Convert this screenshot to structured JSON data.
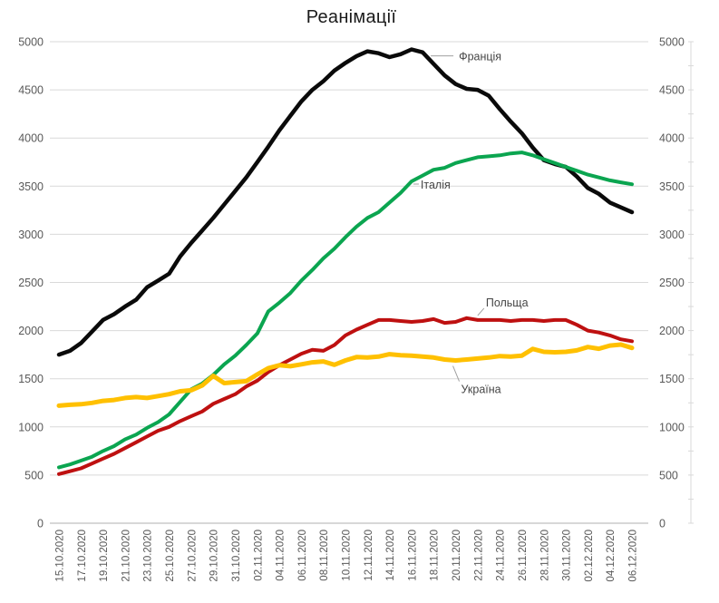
{
  "chart_data": {
    "type": "line",
    "title": "Реанімації",
    "xlabel": "",
    "ylabel": "",
    "ylim": [
      0,
      5000
    ],
    "y_ticks": [
      0,
      500,
      1000,
      1500,
      2000,
      2500,
      3000,
      3500,
      4000,
      4500,
      5000
    ],
    "x_tick_every": 2,
    "grid": true,
    "legend_position": "inline-annotations",
    "axis_text_color": "#595959",
    "grid_color": "#D9D9D9",
    "baseline_color": "#BFBFBF",
    "leader_line_color": "#A0A0A0",
    "annotation_text_color": "#454545",
    "categories": [
      "15.10.2020",
      "16.10.2020",
      "17.10.2020",
      "18.10.2020",
      "19.10.2020",
      "20.10.2020",
      "21.10.2020",
      "22.10.2020",
      "23.10.2020",
      "24.10.2020",
      "25.10.2020",
      "26.10.2020",
      "27.10.2020",
      "28.10.2020",
      "29.10.2020",
      "30.10.2020",
      "31.10.2020",
      "01.11.2020",
      "02.11.2020",
      "03.11.2020",
      "04.11.2020",
      "05.11.2020",
      "06.11.2020",
      "07.11.2020",
      "08.11.2020",
      "09.11.2020",
      "10.11.2020",
      "11.11.2020",
      "12.11.2020",
      "13.11.2020",
      "14.11.2020",
      "15.11.2020",
      "16.11.2020",
      "17.11.2020",
      "18.11.2020",
      "19.11.2020",
      "20.11.2020",
      "21.11.2020",
      "22.11.2020",
      "23.11.2020",
      "24.11.2020",
      "25.11.2020",
      "26.11.2020",
      "27.11.2020",
      "28.11.2020",
      "29.11.2020",
      "30.11.2020",
      "01.12.2020",
      "02.12.2020",
      "03.12.2020",
      "04.12.2020",
      "05.12.2020",
      "06.12.2020"
    ],
    "series": [
      {
        "name": "Франція",
        "id": "france",
        "color": "#0A0A0A",
        "stroke_width": 4.5,
        "values": [
          1750,
          1790,
          1870,
          1990,
          2110,
          2170,
          2250,
          2320,
          2450,
          2520,
          2590,
          2770,
          2910,
          3040,
          3170,
          3310,
          3450,
          3590,
          3750,
          3910,
          4080,
          4230,
          4380,
          4500,
          4590,
          4700,
          4780,
          4850,
          4900,
          4880,
          4840,
          4870,
          4920,
          4890,
          4770,
          4650,
          4560,
          4510,
          4500,
          4440,
          4300,
          4170,
          4050,
          3900,
          3770,
          3730,
          3700,
          3600,
          3480,
          3420,
          3330,
          3280,
          3230
        ]
      },
      {
        "name": "Італія",
        "id": "italy",
        "color": "#0BA550",
        "stroke_width": 4,
        "values": [
          580,
          610,
          650,
          690,
          750,
          800,
          870,
          920,
          990,
          1050,
          1130,
          1260,
          1390,
          1450,
          1540,
          1650,
          1740,
          1850,
          1970,
          2200,
          2290,
          2390,
          2520,
          2630,
          2750,
          2850,
          2970,
          3080,
          3170,
          3230,
          3330,
          3430,
          3550,
          3610,
          3670,
          3690,
          3740,
          3770,
          3800,
          3810,
          3820,
          3840,
          3850,
          3820,
          3780,
          3740,
          3700,
          3660,
          3620,
          3590,
          3560,
          3540,
          3520
        ]
      },
      {
        "name": "Польща",
        "id": "poland",
        "color": "#BE1010",
        "stroke_width": 4,
        "values": [
          510,
          540,
          570,
          620,
          670,
          720,
          780,
          840,
          900,
          960,
          1000,
          1060,
          1110,
          1160,
          1240,
          1290,
          1340,
          1420,
          1480,
          1570,
          1640,
          1700,
          1760,
          1800,
          1790,
          1850,
          1950,
          2010,
          2060,
          2110,
          2110,
          2100,
          2090,
          2100,
          2120,
          2080,
          2090,
          2130,
          2110,
          2110,
          2110,
          2100,
          2110,
          2110,
          2100,
          2110,
          2110,
          2060,
          2000,
          1980,
          1950,
          1910,
          1890
        ]
      },
      {
        "name": "Україна",
        "id": "ukraine",
        "color": "#FFC000",
        "stroke_width": 5,
        "values": [
          1220,
          1230,
          1235,
          1250,
          1270,
          1280,
          1300,
          1310,
          1300,
          1320,
          1340,
          1370,
          1380,
          1430,
          1530,
          1455,
          1465,
          1475,
          1545,
          1610,
          1640,
          1630,
          1650,
          1670,
          1680,
          1645,
          1690,
          1725,
          1720,
          1730,
          1755,
          1745,
          1740,
          1730,
          1720,
          1700,
          1690,
          1700,
          1710,
          1720,
          1735,
          1730,
          1740,
          1810,
          1780,
          1775,
          1780,
          1795,
          1830,
          1812,
          1845,
          1855,
          1820
        ]
      }
    ],
    "annotations": [
      {
        "label": "Франція",
        "series_id": "france",
        "date": "17.11.2020",
        "value": 4890
      },
      {
        "label": "Італія",
        "series_id": "italy",
        "date": "16.11.2020",
        "value": 3550
      },
      {
        "label": "Польща",
        "series_id": "poland",
        "date": "22.11.2020",
        "value": 2110
      },
      {
        "label": "Україна",
        "series_id": "ukraine",
        "date": "20.11.2020",
        "value": 1690
      }
    ]
  }
}
